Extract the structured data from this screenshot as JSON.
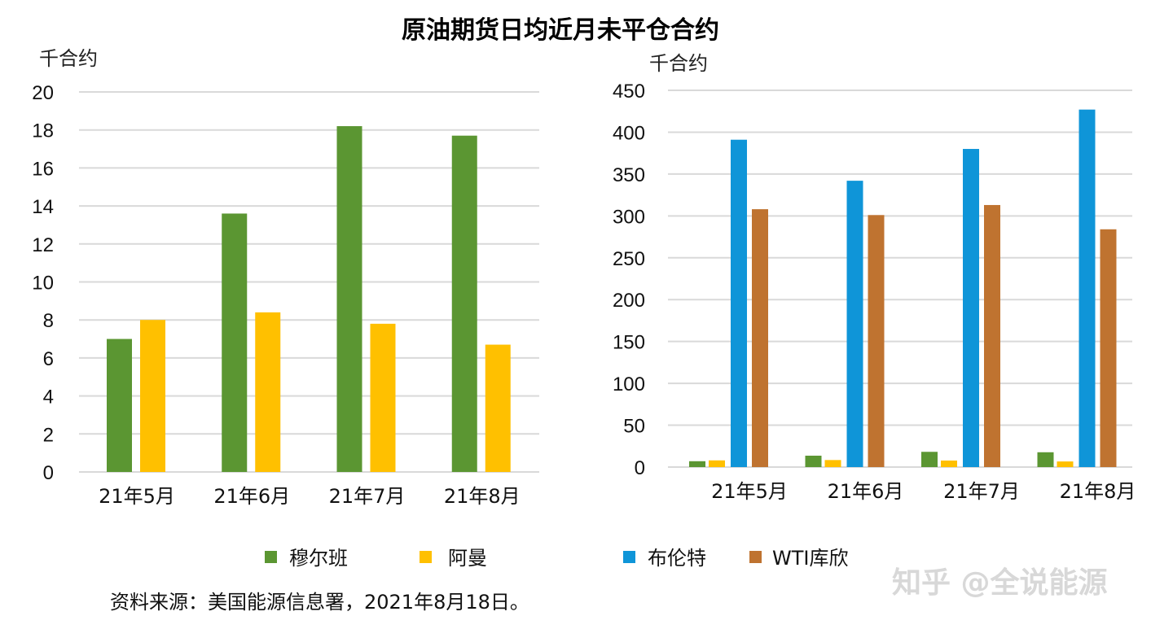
{
  "title": "原油期货日均近月未平仓合约",
  "source": "资料来源：美国能源信息署，2021年8月18日。",
  "watermark": "知乎 @全说能源",
  "colors": {
    "穆尔班": "#5b9632",
    "阿曼": "#ffc000",
    "布伦特": "#0f95d8",
    "WTI库欣": "#bf7330",
    "grid": "#d9d9d9"
  },
  "legend": [
    {
      "name": "穆尔班",
      "color": "#5b9632"
    },
    {
      "name": "阿曼",
      "color": "#ffc000"
    },
    {
      "name": "布伦特",
      "color": "#0f95d8"
    },
    {
      "name": "WTI库欣",
      "color": "#bf7330"
    }
  ],
  "chart_data": [
    {
      "type": "bar",
      "ylabel": "千合约",
      "ylim": [
        0,
        20
      ],
      "yticks": [
        0,
        2,
        4,
        6,
        8,
        10,
        12,
        14,
        16,
        18,
        20
      ],
      "grid": true,
      "categories": [
        "21年5月",
        "21年6月",
        "21年7月",
        "21年8月"
      ],
      "series": [
        {
          "name": "穆尔班",
          "color": "#5b9632",
          "values": [
            7.0,
            13.6,
            18.2,
            17.7
          ]
        },
        {
          "name": "阿曼",
          "color": "#ffc000",
          "values": [
            8.0,
            8.4,
            7.8,
            6.7
          ]
        }
      ]
    },
    {
      "type": "bar",
      "ylabel": "千合约",
      "ylim": [
        0,
        450
      ],
      "yticks": [
        0,
        50,
        100,
        150,
        200,
        250,
        300,
        350,
        400,
        450
      ],
      "grid": true,
      "categories": [
        "21年5月",
        "21年6月",
        "21年7月",
        "21年8月"
      ],
      "series": [
        {
          "name": "穆尔班",
          "color": "#5b9632",
          "values": [
            7.0,
            13.6,
            18.2,
            17.7
          ]
        },
        {
          "name": "阿曼",
          "color": "#ffc000",
          "values": [
            8.0,
            8.4,
            7.8,
            6.7
          ]
        },
        {
          "name": "布伦特",
          "color": "#0f95d8",
          "values": [
            391,
            342,
            380,
            427
          ]
        },
        {
          "name": "WTI库欣",
          "color": "#bf7330",
          "values": [
            308,
            301,
            313,
            284
          ]
        }
      ]
    }
  ]
}
